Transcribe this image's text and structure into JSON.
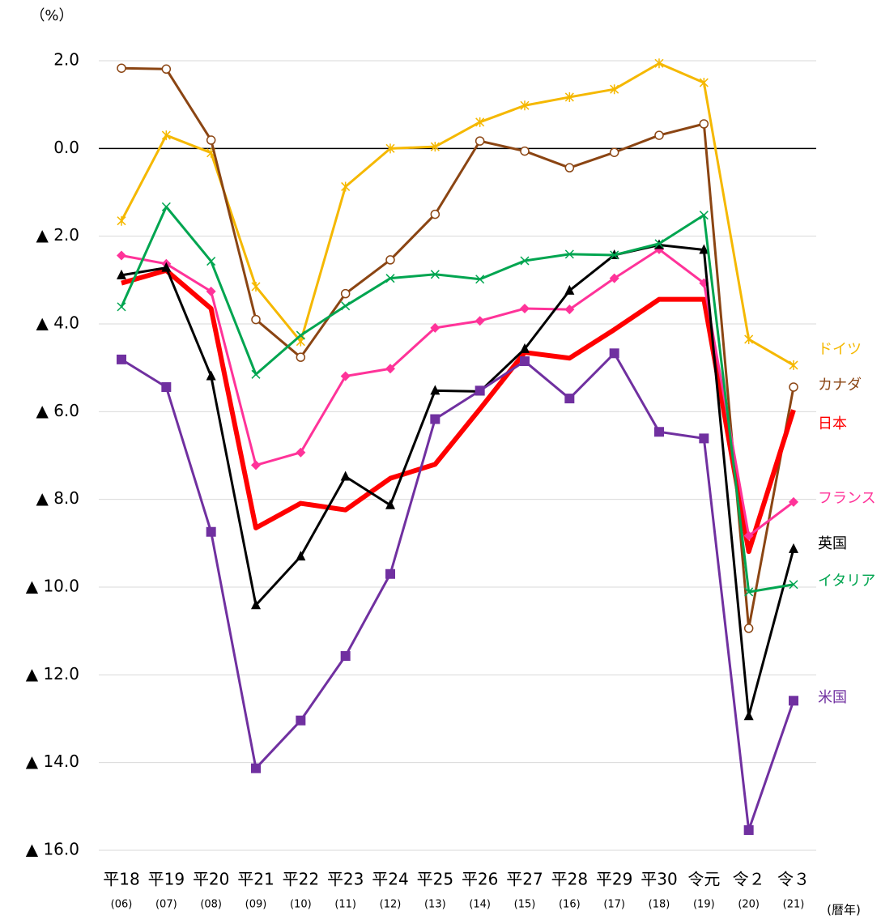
{
  "chart_data": {
    "type": "line",
    "y_label": "（%）",
    "x_label": "(暦年)",
    "categories": [
      "平18",
      "平19",
      "平20",
      "平21",
      "平22",
      "平23",
      "平24",
      "平25",
      "平26",
      "平27",
      "平28",
      "平29",
      "平30",
      "令元",
      "令２",
      "令３"
    ],
    "sub_categories": [
      "(06)",
      "(07)",
      "(08)",
      "(09)",
      "(10)",
      "(11)",
      "(12)",
      "(13)",
      "(14)",
      "(15)",
      "(16)",
      "(17)",
      "(18)",
      "(19)",
      "(20)",
      "(21)"
    ],
    "ylim": [
      -16,
      2
    ],
    "yticks": [
      {
        "value": 2,
        "label": "2.0"
      },
      {
        "value": 0,
        "label": "0.0"
      },
      {
        "value": -2,
        "label": "▲ 2.0"
      },
      {
        "value": -4,
        "label": "▲ 4.0"
      },
      {
        "value": -6,
        "label": "▲ 6.0"
      },
      {
        "value": -8,
        "label": "▲ 8.0"
      },
      {
        "value": -10,
        "label": "▲ 10.0"
      },
      {
        "value": -12,
        "label": "▲ 12.0"
      },
      {
        "value": -14,
        "label": "▲ 14.0"
      },
      {
        "value": -16,
        "label": "▲ 16.0"
      }
    ],
    "grid": true,
    "series": [
      {
        "name": "ドイツ",
        "color": "#f5b800",
        "marker": "star",
        "line_width": 3,
        "values": [
          -1.65,
          0.3,
          -0.1,
          -3.15,
          -4.4,
          -0.87,
          0.0,
          0.04,
          0.6,
          0.98,
          1.17,
          1.35,
          1.94,
          1.5,
          -4.35,
          -4.94
        ]
      },
      {
        "name": "カナダ",
        "color": "#8b4513",
        "marker": "circle",
        "line_width": 3,
        "values": [
          1.83,
          1.81,
          0.19,
          -3.9,
          -4.76,
          -3.31,
          -2.54,
          -1.5,
          0.17,
          -0.06,
          -0.44,
          -0.09,
          0.3,
          0.56,
          -10.94,
          -5.44
        ]
      },
      {
        "name": "日本",
        "color": "#ff0000",
        "marker": "none",
        "line_width": 6,
        "values": [
          -3.07,
          -2.78,
          -3.65,
          -8.65,
          -8.09,
          -8.24,
          -7.52,
          -7.2,
          -5.94,
          -4.65,
          -4.78,
          -4.13,
          -3.44,
          -3.44,
          -9.19,
          -5.96
        ]
      },
      {
        "name": "フランス",
        "color": "#ff3399",
        "marker": "diamond",
        "line_width": 3,
        "values": [
          -2.44,
          -2.63,
          -3.26,
          -7.22,
          -6.93,
          -5.19,
          -5.02,
          -4.09,
          -3.93,
          -3.65,
          -3.67,
          -2.96,
          -2.3,
          -3.07,
          -8.83,
          -8.06
        ]
      },
      {
        "name": "英国",
        "color": "#000000",
        "marker": "triangle",
        "line_width": 3,
        "values": [
          -2.89,
          -2.72,
          -5.19,
          -10.41,
          -9.3,
          -7.48,
          -8.13,
          -5.52,
          -5.54,
          -4.57,
          -3.24,
          -2.43,
          -2.2,
          -2.31,
          -12.94,
          -9.13
        ]
      },
      {
        "name": "イタリア",
        "color": "#00a550",
        "marker": "x",
        "line_width": 3,
        "values": [
          -3.61,
          -1.33,
          -2.57,
          -5.15,
          -4.26,
          -3.59,
          -2.96,
          -2.87,
          -2.98,
          -2.56,
          -2.41,
          -2.43,
          -2.17,
          -1.52,
          -10.11,
          -9.94
        ]
      },
      {
        "name": "米国",
        "color": "#7030a0",
        "marker": "square",
        "line_width": 3,
        "values": [
          -4.81,
          -5.44,
          -8.74,
          -14.13,
          -13.04,
          -11.57,
          -9.7,
          -6.17,
          -5.52,
          -4.85,
          -5.7,
          -4.67,
          -6.46,
          -6.61,
          -15.54,
          -12.59
        ]
      }
    ]
  }
}
